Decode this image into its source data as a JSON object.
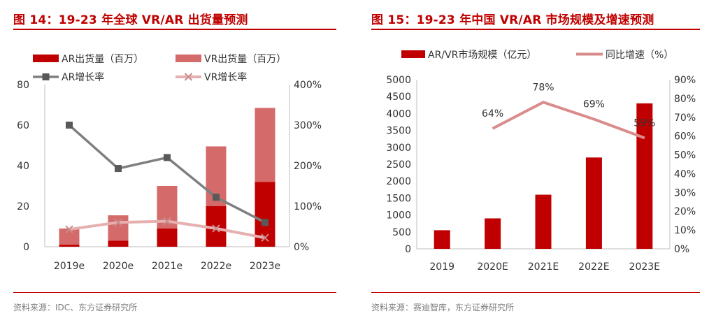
{
  "left": {
    "title": "图 14：19-23 年全球 VR/AR 出货量预测",
    "source": "资料来源：IDC、东方证券研究所",
    "chart_data": {
      "type": "bar",
      "stacked": true,
      "categories": [
        "2019e",
        "2020e",
        "2021e",
        "2022e",
        "2023e"
      ],
      "series": [
        {
          "name": "AR出货量（百万）",
          "kind": "bar",
          "axis": "left",
          "color": "#c00000",
          "values": [
            1,
            3,
            9,
            20,
            32
          ]
        },
        {
          "name": "VR出货量（百万）",
          "kind": "bar",
          "axis": "left",
          "color": "#d46a6a",
          "values": [
            8,
            12.5,
            21,
            29.5,
            36.5
          ]
        },
        {
          "name": "AR增长率",
          "kind": "line",
          "axis": "right",
          "color": "#7f7f7f",
          "marker": "square",
          "values": [
            300,
            193,
            220,
            122,
            60
          ]
        },
        {
          "name": "VR增长率",
          "kind": "line",
          "axis": "right",
          "color": "#e6b0b0",
          "marker": "x",
          "values": [
            43,
            60,
            63,
            45,
            22
          ]
        }
      ],
      "ylim": [
        0,
        80
      ],
      "yticks": [
        "0",
        "20",
        "40",
        "60",
        "80"
      ],
      "y2lim": [
        0,
        400
      ],
      "y2ticks": [
        "0%",
        "100%",
        "200%",
        "300%",
        "400%"
      ],
      "grid": false,
      "legend": "top"
    }
  },
  "right": {
    "title": "图 15：19-23 年中国 VR/AR 市场规模及增速预测",
    "source": "资料来源：赛迪智库，东方证券研究所",
    "chart_data": {
      "type": "bar",
      "categories": [
        "2019",
        "2020E",
        "2021E",
        "2022E",
        "2023E"
      ],
      "series": [
        {
          "name": "AR/VR市场规模（亿元）",
          "kind": "bar",
          "axis": "left",
          "color": "#c00000",
          "values": [
            550,
            900,
            1600,
            2700,
            4300
          ]
        },
        {
          "name": "同比增速（%）",
          "kind": "line",
          "axis": "right",
          "color": "#d98c8c",
          "values": [
            null,
            64,
            78,
            69,
            59
          ],
          "labels": [
            "",
            "64%",
            "78%",
            "69%",
            "59%"
          ]
        }
      ],
      "ylim": [
        0,
        5000
      ],
      "yticks": [
        "0",
        "500",
        "1000",
        "1500",
        "2000",
        "2500",
        "3000",
        "3500",
        "4000",
        "4500",
        "5000"
      ],
      "y2lim": [
        0,
        90
      ],
      "y2ticks": [
        "0%",
        "10%",
        "20%",
        "30%",
        "40%",
        "50%",
        "60%",
        "70%",
        "80%",
        "90%"
      ],
      "grid": false,
      "legend": "top"
    }
  }
}
